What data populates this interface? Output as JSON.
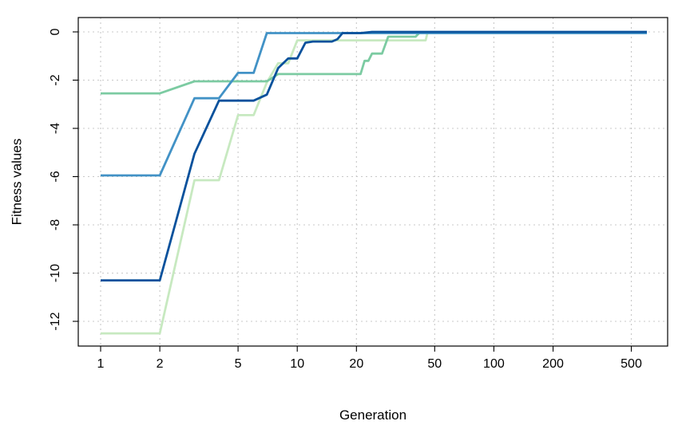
{
  "chart_data": {
    "type": "line",
    "title": "",
    "xlabel": "Generation",
    "ylabel": "Fitness values",
    "x_scale": "log",
    "xlim": [
      1,
      700
    ],
    "ylim": [
      -13,
      0
    ],
    "x_ticks": [
      1,
      2,
      5,
      10,
      20,
      50,
      100,
      200,
      500
    ],
    "y_ticks": [
      0,
      -2,
      -4,
      -6,
      -8,
      -10,
      -12
    ],
    "grid": true,
    "legend": "none",
    "series": [
      {
        "color": "#c7e9c0",
        "points": [
          [
            1,
            -12.5
          ],
          [
            2,
            -12.5
          ],
          [
            3,
            -6.15
          ],
          [
            4,
            -6.15
          ],
          [
            5,
            -3.45
          ],
          [
            6,
            -3.45
          ],
          [
            7,
            -2.1
          ],
          [
            8,
            -1.3
          ],
          [
            9,
            -1.3
          ],
          [
            10,
            -0.35
          ],
          [
            45,
            -0.35
          ],
          [
            46,
            -0.02
          ],
          [
            600,
            -0.02
          ]
        ]
      },
      {
        "color": "#7ccba2",
        "points": [
          [
            1,
            -2.55
          ],
          [
            2,
            -2.55
          ],
          [
            3,
            -2.05
          ],
          [
            4,
            -2.05
          ],
          [
            7,
            -2.05
          ],
          [
            8,
            -1.75
          ],
          [
            21,
            -1.75
          ],
          [
            22,
            -1.2
          ],
          [
            23,
            -1.2
          ],
          [
            24,
            -0.9
          ],
          [
            27,
            -0.9
          ],
          [
            29,
            -0.2
          ],
          [
            40,
            -0.2
          ],
          [
            42,
            -0.02
          ],
          [
            600,
            -0.02
          ]
        ]
      },
      {
        "color": "#4292c6",
        "points": [
          [
            1,
            -5.95
          ],
          [
            2,
            -5.95
          ],
          [
            3,
            -2.75
          ],
          [
            4,
            -2.75
          ],
          [
            5,
            -1.7
          ],
          [
            6,
            -1.7
          ],
          [
            7,
            -0.05
          ],
          [
            600,
            -0.05
          ]
        ]
      },
      {
        "color": "#08519c",
        "points": [
          [
            1,
            -10.3
          ],
          [
            2,
            -10.3
          ],
          [
            3,
            -5.05
          ],
          [
            4,
            -2.85
          ],
          [
            6,
            -2.85
          ],
          [
            7,
            -2.6
          ],
          [
            8,
            -1.5
          ],
          [
            9,
            -1.1
          ],
          [
            10,
            -1.1
          ],
          [
            11,
            -0.45
          ],
          [
            12,
            -0.4
          ],
          [
            15,
            -0.4
          ],
          [
            16,
            -0.3
          ],
          [
            17,
            -0.05
          ],
          [
            21,
            -0.05
          ],
          [
            24,
            0
          ],
          [
            600,
            0
          ]
        ]
      }
    ]
  }
}
